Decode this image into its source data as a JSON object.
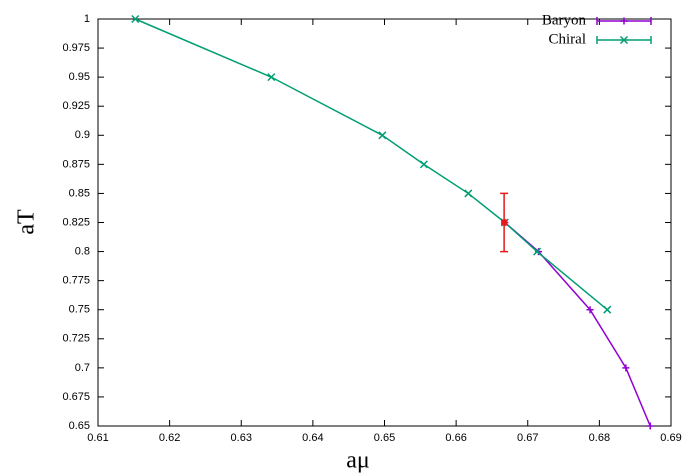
{
  "chart_data": {
    "type": "line",
    "xlabel": "aμ",
    "ylabel": "aT",
    "series": [
      {
        "name": "Baryon",
        "color": "#9400d3",
        "marker": "plus",
        "x": [
          0.6668,
          0.6715,
          0.6787,
          0.6837,
          0.6871
        ],
        "values": [
          0.825,
          0.8,
          0.75,
          0.7,
          0.65
        ]
      },
      {
        "name": "Chiral",
        "color": "#009e73",
        "marker": "cross",
        "x": [
          0.6152,
          0.6342,
          0.6497,
          0.6555,
          0.6617,
          0.6668,
          0.6713,
          0.6811
        ],
        "values": [
          1,
          0.95,
          0.9,
          0.875,
          0.85,
          0.825,
          0.8,
          0.75
        ]
      }
    ],
    "errorbar": {
      "x": 0.6667,
      "y": 0.825,
      "yerr": 0.025,
      "color": "#e41a1c"
    },
    "xlim": [
      0.61,
      0.69
    ],
    "xticks": [
      0.61,
      0.62,
      0.63,
      0.64,
      0.65,
      0.66,
      0.67,
      0.68,
      0.69
    ],
    "ylim": [
      0.65,
      1
    ],
    "yticks": [
      0.65,
      0.675,
      0.7,
      0.725,
      0.75,
      0.775,
      0.8,
      0.825,
      0.85,
      0.875,
      0.9,
      0.925,
      0.95,
      0.975,
      1
    ],
    "legend": "top-right"
  }
}
